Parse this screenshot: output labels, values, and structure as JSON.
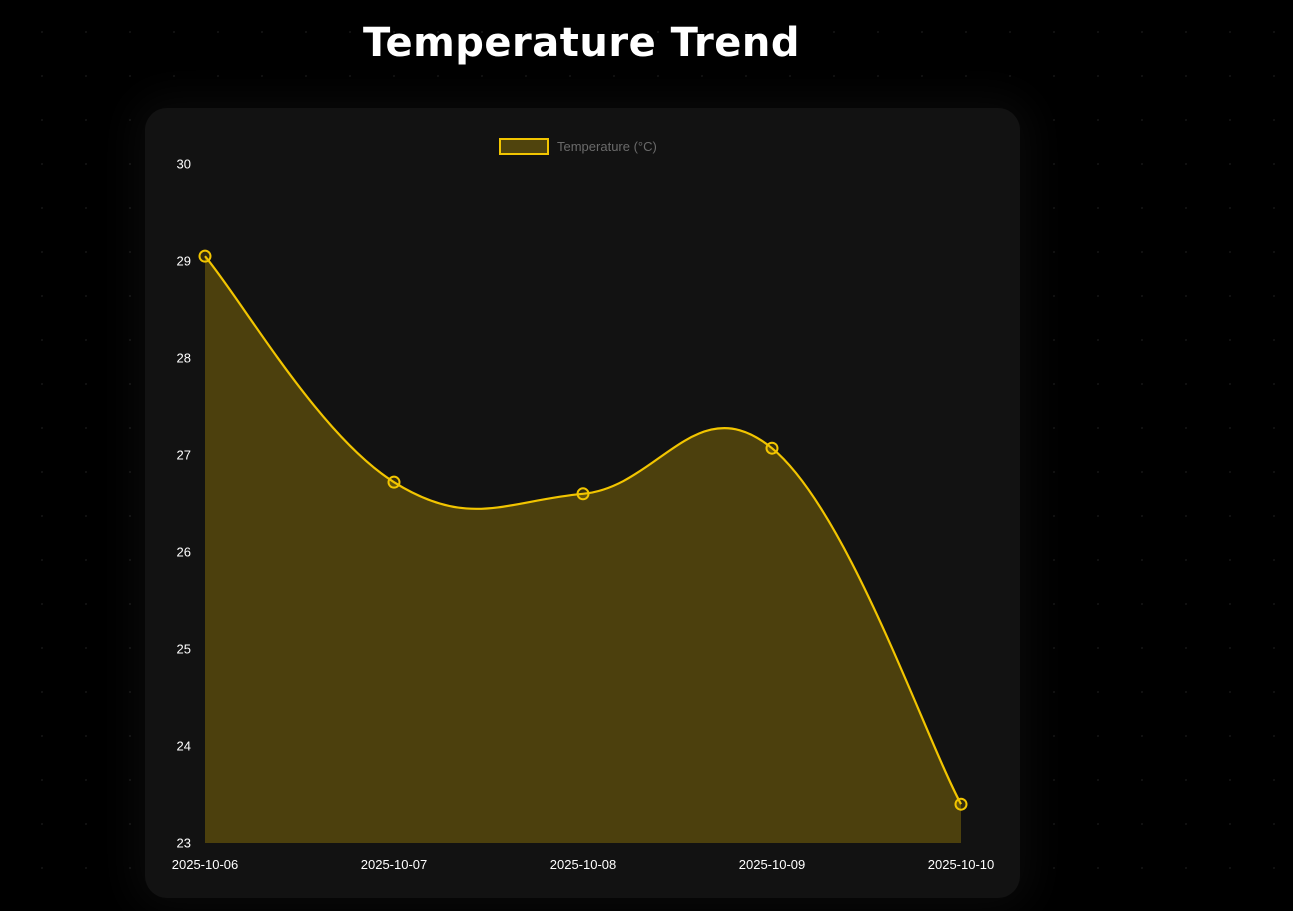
{
  "page": {
    "title": "Temperature Trend"
  },
  "colors": {
    "background": "#000000",
    "card": "#121212",
    "accent": "#f2c500",
    "fill": "rgba(242,197,0,0.26)",
    "tick_text": "#ffffff",
    "legend_text": "#6a6a6a"
  },
  "chart_data": {
    "type": "area",
    "x": [
      "2025-10-06",
      "2025-10-07",
      "2025-10-08",
      "2025-10-09",
      "2025-10-10"
    ],
    "series": [
      {
        "name": "Temperature (°C)",
        "values": [
          29.05,
          26.72,
          26.6,
          27.07,
          23.4
        ]
      }
    ],
    "ylim": [
      23,
      30
    ],
    "yticks": [
      30,
      29,
      28,
      27,
      26,
      25,
      24,
      23
    ],
    "grid": false,
    "legend_position": "top-center",
    "xlabel": "",
    "ylabel": "",
    "title": ""
  }
}
